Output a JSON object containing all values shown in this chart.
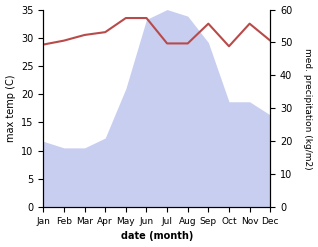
{
  "months": [
    "Jan",
    "Feb",
    "Mar",
    "Apr",
    "May",
    "Jun",
    "Jul",
    "Aug",
    "Sep",
    "Oct",
    "Nov",
    "Dec"
  ],
  "temperature": [
    28.8,
    29.5,
    30.5,
    31.0,
    33.5,
    33.5,
    29.0,
    29.0,
    32.5,
    28.5,
    32.5,
    29.5
  ],
  "precipitation": [
    20,
    18,
    18,
    21,
    36,
    57,
    60,
    58,
    50,
    32,
    32,
    28
  ],
  "temp_color": "#b94a4a",
  "precip_fill_color": "#c8cef0",
  "ylabel_left": "max temp (C)",
  "ylabel_right": "med. precipitation (kg/m2)",
  "xlabel": "date (month)",
  "ylim_left": [
    0,
    35
  ],
  "ylim_right": [
    0,
    60
  ],
  "left_yticks": [
    0,
    5,
    10,
    15,
    20,
    25,
    30,
    35
  ],
  "right_yticks": [
    0,
    10,
    20,
    30,
    40,
    50,
    60
  ],
  "background_color": "#ffffff"
}
